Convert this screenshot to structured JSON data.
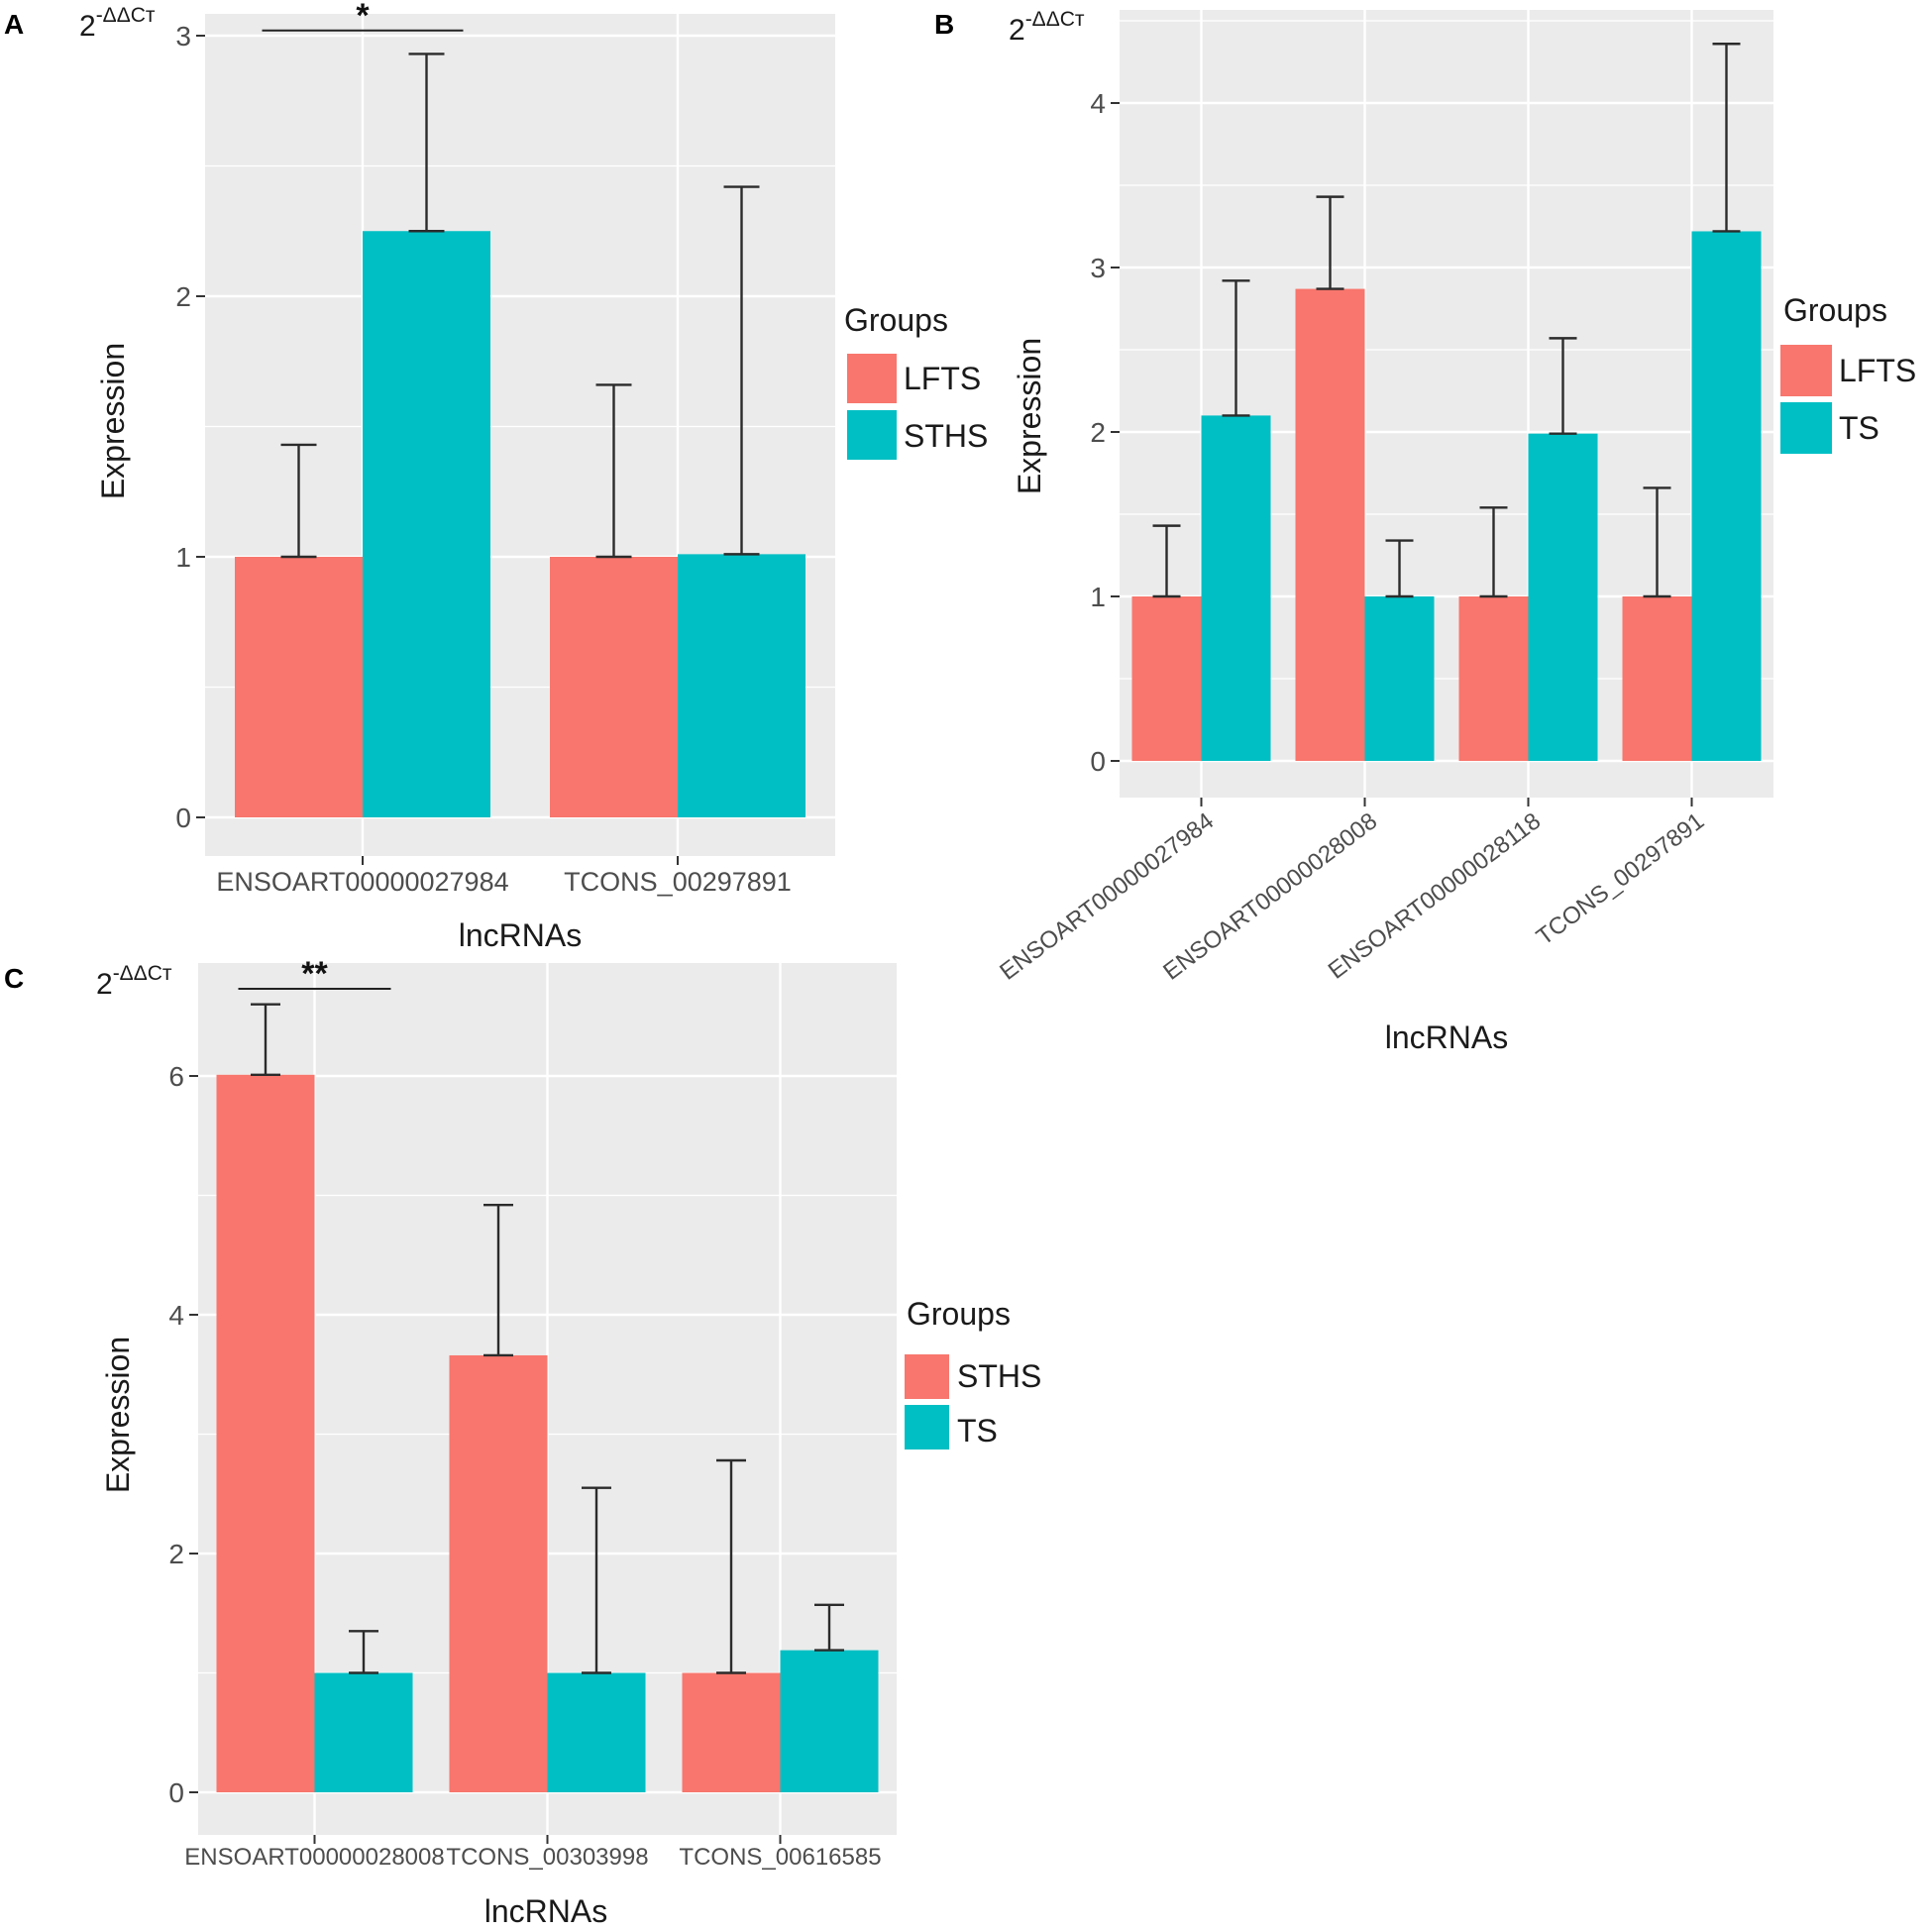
{
  "colors": {
    "panel_bg": "#EBEBEB",
    "grid": "#FFFFFF",
    "red": "#F8766D",
    "teal": "#00BFC4",
    "text": "#1a1a1a",
    "tick_text": "#4d4d4d",
    "errorbar": "#2b2b2b"
  },
  "chart_data": [
    {
      "type": "bar",
      "panel": "A",
      "ylabel_top": "2",
      "ylabel_sup": "-ΔΔCт",
      "ylabel": "Expression",
      "xlabel": "lncRNAs",
      "ylim": [
        0,
        3.1
      ],
      "yticks": [
        0,
        1,
        2,
        3
      ],
      "ytick_labels": [
        "0",
        "1",
        "2",
        "3"
      ],
      "rotate_x": false,
      "categories": [
        "ENSOART00000027984",
        "TCONS_00297891"
      ],
      "legend_title": "Groups",
      "series": [
        {
          "name": "LFTS",
          "color_key": "red",
          "values": [
            1.0,
            1.0
          ],
          "errors": [
            1.43,
            1.66
          ]
        },
        {
          "name": "STHS",
          "color_key": "teal",
          "values": [
            2.25,
            1.01
          ],
          "errors": [
            2.93,
            2.42
          ]
        }
      ],
      "significance": [
        {
          "category_index": 0,
          "label": "*",
          "value": 3.02
        }
      ]
    },
    {
      "type": "bar",
      "panel": "B",
      "ylabel_top": "2",
      "ylabel_sup": "-ΔΔCт",
      "ylabel": "Expression",
      "xlabel": "lncRNAs",
      "ylim": [
        0,
        4.5
      ],
      "yticks": [
        0,
        1,
        2,
        3,
        4
      ],
      "ytick_labels": [
        "0",
        "1",
        "2",
        "3",
        "4"
      ],
      "rotate_x": true,
      "categories": [
        "ENSOART00000027984",
        "ENSOART00000028008",
        "ENSOART00000028118",
        "TCONS_00297891"
      ],
      "legend_title": "Groups",
      "series": [
        {
          "name": "LFTS",
          "color_key": "red",
          "values": [
            1.0,
            2.87,
            1.0,
            1.0
          ],
          "errors": [
            1.43,
            3.43,
            1.54,
            1.66
          ]
        },
        {
          "name": "TS",
          "color_key": "teal",
          "values": [
            2.1,
            1.0,
            1.99,
            3.22
          ],
          "errors": [
            2.92,
            1.34,
            2.57,
            4.36
          ]
        }
      ],
      "significance": []
    },
    {
      "type": "bar",
      "panel": "C",
      "ylabel_top": "2",
      "ylabel_sup": "-ΔΔCт",
      "ylabel": "Expression",
      "xlabel": "lncRNAs",
      "ylim": [
        0,
        6.9
      ],
      "yticks": [
        0,
        2,
        4,
        6
      ],
      "ytick_labels": [
        "0",
        "2",
        "4",
        "6"
      ],
      "rotate_x": false,
      "categories": [
        "ENSOART00000028008",
        "TCONS_00303998",
        "TCONS_00616585"
      ],
      "legend_title": "Groups",
      "series": [
        {
          "name": "STHS",
          "color_key": "red",
          "values": [
            6.01,
            3.66,
            1.0
          ],
          "errors": [
            6.6,
            4.92,
            2.78
          ]
        },
        {
          "name": "TS",
          "color_key": "teal",
          "values": [
            1.0,
            1.0,
            1.19
          ],
          "errors": [
            1.35,
            2.55,
            1.57
          ]
        }
      ],
      "significance": [
        {
          "category_index": 0,
          "label": "**",
          "value": 6.73
        }
      ]
    }
  ]
}
